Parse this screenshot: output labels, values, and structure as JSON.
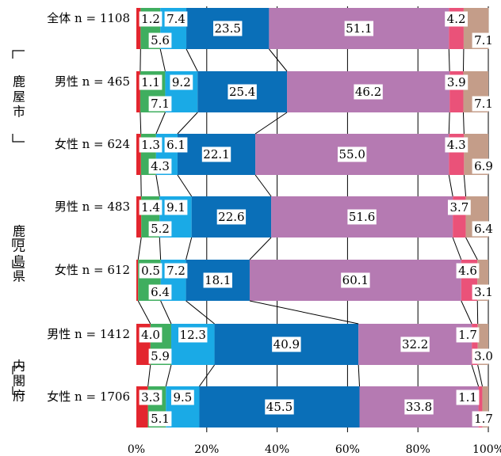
{
  "chart_data": {
    "type": "bar",
    "orientation": "horizontal",
    "stacked": true,
    "percent": true,
    "xlim": [
      0,
      100
    ],
    "x_ticks": [
      "0%",
      "20%",
      "40%",
      "60%",
      "80%",
      "100%"
    ],
    "grid": true,
    "groups": [
      {
        "label": "鹿屋市",
        "rows": [
          0,
          1,
          2
        ]
      },
      {
        "label": "鹿児島県",
        "rows": [
          3,
          4
        ]
      },
      {
        "label": "内閣府",
        "rows": [
          5,
          6
        ]
      }
    ],
    "rows": [
      {
        "label": "全体 n = 1108",
        "values": [
          1.2,
          5.6,
          7.4,
          23.5,
          51.1,
          4.2,
          7.1
        ]
      },
      {
        "label": "男性 n = 465",
        "values": [
          1.1,
          7.1,
          9.2,
          25.4,
          46.2,
          3.9,
          7.1
        ]
      },
      {
        "label": "女性 n = 624",
        "values": [
          1.3,
          4.3,
          6.1,
          22.1,
          55.0,
          4.3,
          6.9
        ]
      },
      {
        "label": "男性 n = 483",
        "values": [
          1.4,
          5.2,
          9.1,
          22.6,
          51.6,
          3.7,
          6.4
        ]
      },
      {
        "label": "女性 n = 612",
        "values": [
          0.5,
          6.4,
          7.2,
          18.1,
          60.1,
          4.6,
          3.1
        ]
      },
      {
        "label": "男性 n = 1412",
        "values": [
          4.0,
          5.9,
          12.3,
          40.9,
          32.2,
          1.7,
          3.0
        ]
      },
      {
        "label": "女性 n = 1706",
        "values": [
          3.3,
          5.1,
          9.5,
          45.5,
          33.8,
          1.1,
          1.7
        ]
      }
    ],
    "series_colors": [
      "#e3262e",
      "#3fae5f",
      "#1aaae6",
      "#0a6fb8",
      "#b57ab2",
      "#ea5279",
      "#c49d89"
    ],
    "connector_lines": true
  }
}
